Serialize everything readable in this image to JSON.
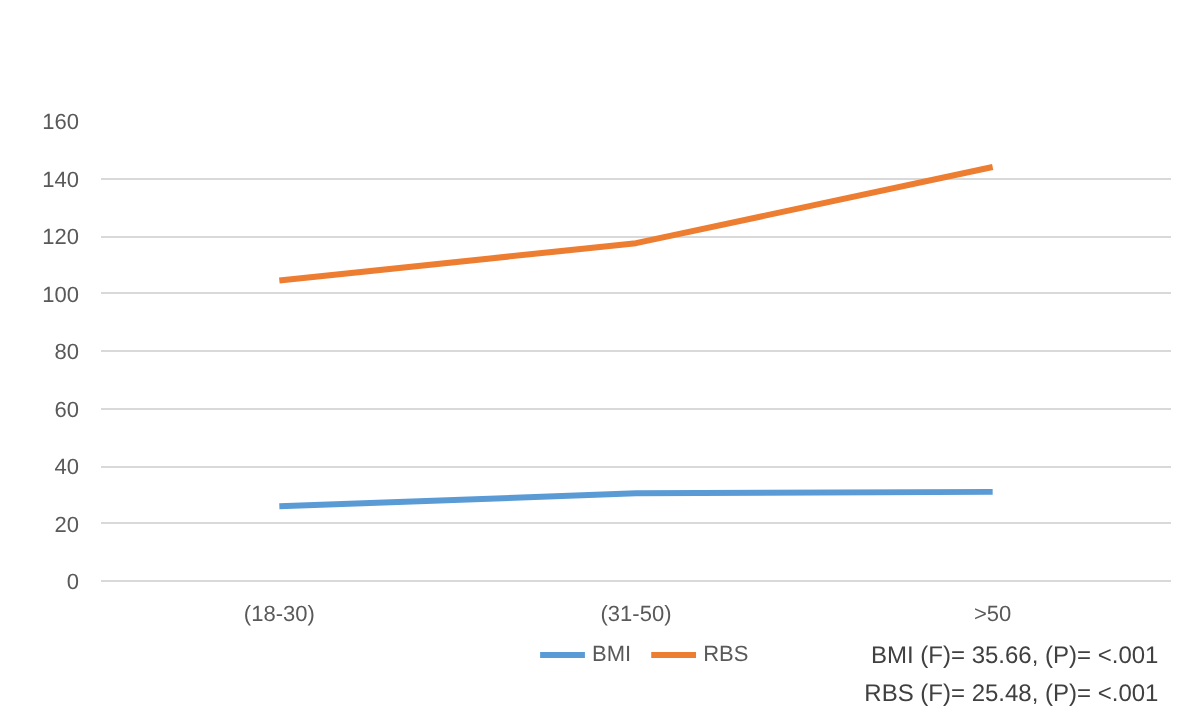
{
  "chart_data": {
    "type": "line",
    "categories": [
      "(18-30)",
      "(31-50)",
      ">50"
    ],
    "series": [
      {
        "name": "BMI",
        "color": "#5b9bd5",
        "values": [
          26,
          30.5,
          31
        ]
      },
      {
        "name": "RBS",
        "color": "#ed7d31",
        "values": [
          104.5,
          117.5,
          144
        ]
      }
    ],
    "ylim": [
      0,
      160
    ],
    "yticks": [
      0,
      20,
      40,
      60,
      80,
      100,
      120,
      140,
      160
    ],
    "grid": "y",
    "legend": "bottom",
    "marker": "none",
    "line_style": "solid",
    "annotations": [
      "BMI (F)= 35.66, (P)= <.001",
      "RBS (F)= 25.48, (P)= <.001"
    ]
  }
}
